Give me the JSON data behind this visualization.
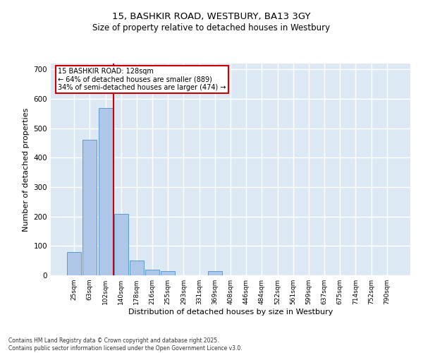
{
  "title_line1": "15, BASHKIR ROAD, WESTBURY, BA13 3GY",
  "title_line2": "Size of property relative to detached houses in Westbury",
  "xlabel": "Distribution of detached houses by size in Westbury",
  "ylabel": "Number of detached properties",
  "categories": [
    "25sqm",
    "63sqm",
    "102sqm",
    "140sqm",
    "178sqm",
    "216sqm",
    "255sqm",
    "293sqm",
    "331sqm",
    "369sqm",
    "408sqm",
    "446sqm",
    "484sqm",
    "522sqm",
    "561sqm",
    "599sqm",
    "637sqm",
    "675sqm",
    "714sqm",
    "752sqm",
    "790sqm"
  ],
  "values": [
    80,
    460,
    570,
    210,
    50,
    20,
    15,
    0,
    0,
    15,
    0,
    0,
    0,
    0,
    0,
    0,
    0,
    0,
    0,
    0,
    0
  ],
  "bar_color": "#aec6e8",
  "bar_edge_color": "#5b9bd5",
  "bg_color": "#dce9f5",
  "grid_color": "#ffffff",
  "vline_color": "#cc0000",
  "annotation_text": "15 BASHKIR ROAD: 128sqm\n← 64% of detached houses are smaller (889)\n34% of semi-detached houses are larger (474) →",
  "annotation_box_color": "#ffffff",
  "annotation_box_edge": "#cc0000",
  "ylim": [
    0,
    720
  ],
  "yticks": [
    0,
    100,
    200,
    300,
    400,
    500,
    600,
    700
  ],
  "footnote": "Contains HM Land Registry data © Crown copyright and database right 2025.\nContains public sector information licensed under the Open Government Licence v3.0."
}
